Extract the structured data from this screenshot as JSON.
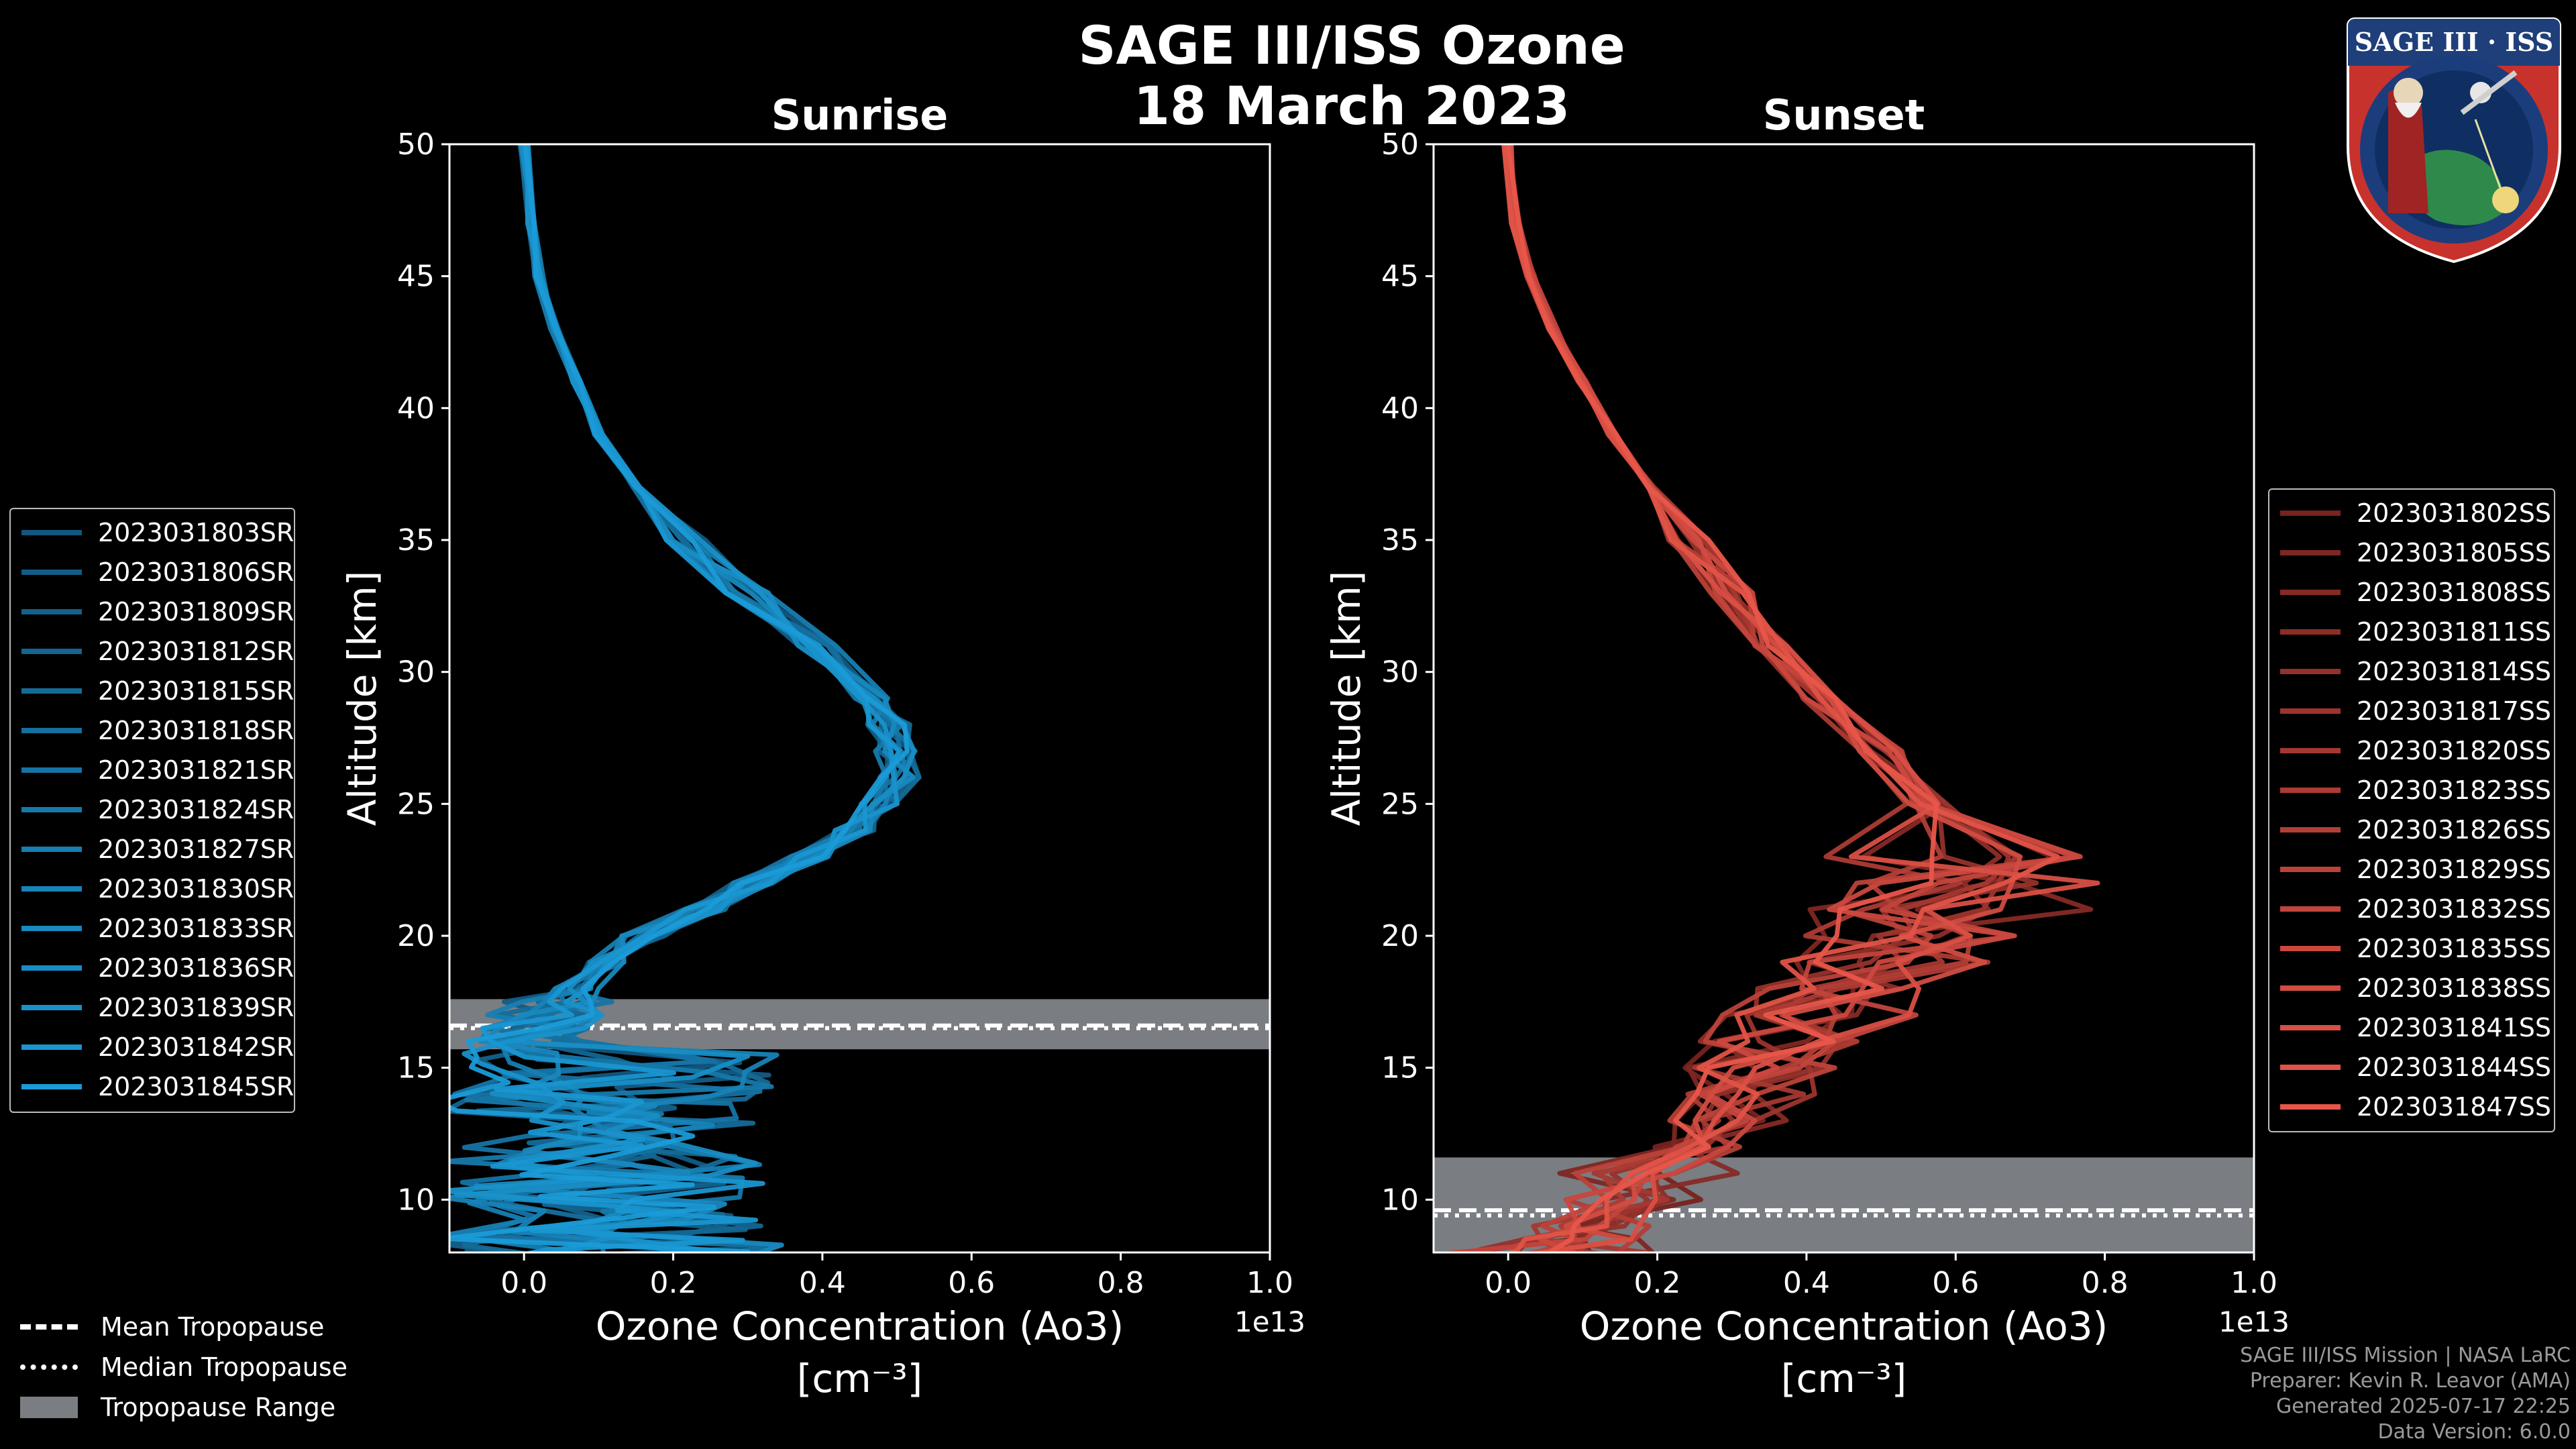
{
  "title": "SAGE III/ISS Ozone",
  "date": "18 March 2023",
  "logo_text": "SAGE III · ISS",
  "colors": {
    "sunrise": "#1a9bd7",
    "sunset": "#e8564a",
    "trop_band": "#7a7d82"
  },
  "chart_data": [
    {
      "type": "line",
      "name": "sunrise",
      "title": "Sunrise",
      "xlabel": "Ozone Concentration (Ao3)",
      "xlabel_units": "[cm⁻³]",
      "x_multiplier": "1e13",
      "ylabel": "Altitude [km]",
      "xlim": [
        -0.1,
        1.0
      ],
      "ylim": [
        8,
        50
      ],
      "xticks": [
        "0.0",
        "0.2",
        "0.4",
        "0.6",
        "0.8",
        "1.0"
      ],
      "yticks": [
        "10",
        "15",
        "20",
        "25",
        "30",
        "35",
        "40",
        "45",
        "50"
      ],
      "tropopause": {
        "mean": 16.6,
        "median": 16.5,
        "range": [
          15.7,
          17.6
        ]
      },
      "profile": {
        "alt": [
          50,
          47,
          45,
          43,
          41,
          39,
          37,
          35,
          33,
          31,
          29,
          28,
          27,
          26,
          25,
          24,
          23,
          22,
          21,
          20,
          19,
          18,
          17.5,
          17,
          16.5,
          16
        ],
        "ozone": [
          0.0,
          0.01,
          0.02,
          0.04,
          0.07,
          0.1,
          0.15,
          0.22,
          0.3,
          0.39,
          0.46,
          0.49,
          0.5,
          0.5,
          0.48,
          0.44,
          0.38,
          0.31,
          0.24,
          0.16,
          0.11,
          0.07,
          0.05,
          0.03,
          0.02,
          0.0
        ]
      },
      "series": [
        {
          "name": "2023031803SR"
        },
        {
          "name": "2023031806SR"
        },
        {
          "name": "2023031809SR"
        },
        {
          "name": "2023031812SR"
        },
        {
          "name": "2023031815SR"
        },
        {
          "name": "2023031818SR"
        },
        {
          "name": "2023031821SR"
        },
        {
          "name": "2023031824SR"
        },
        {
          "name": "2023031827SR"
        },
        {
          "name": "2023031830SR"
        },
        {
          "name": "2023031833SR"
        },
        {
          "name": "2023031836SR"
        },
        {
          "name": "2023031839SR"
        },
        {
          "name": "2023031842SR"
        },
        {
          "name": "2023031845SR"
        }
      ]
    },
    {
      "type": "line",
      "name": "sunset",
      "title": "Sunset",
      "xlabel": "Ozone Concentration (Ao3)",
      "xlabel_units": "[cm⁻³]",
      "x_multiplier": "1e13",
      "ylabel": "Altitude [km]",
      "xlim": [
        -0.1,
        1.0
      ],
      "ylim": [
        8,
        50
      ],
      "xticks": [
        "0.0",
        "0.2",
        "0.4",
        "0.6",
        "0.8",
        "1.0"
      ],
      "yticks": [
        "10",
        "15",
        "20",
        "25",
        "30",
        "35",
        "40",
        "45",
        "50"
      ],
      "tropopause": {
        "mean": 9.6,
        "median": 9.4,
        "range": [
          8,
          11.6
        ]
      },
      "profile": {
        "alt": [
          50,
          47,
          45,
          43,
          41,
          39,
          37,
          35,
          33,
          31,
          29,
          27,
          25,
          23,
          22,
          21,
          20,
          19,
          18,
          17,
          16,
          15,
          14,
          13,
          12,
          11,
          10,
          9,
          8.5
        ],
        "ozone": [
          0.0,
          0.01,
          0.03,
          0.06,
          0.1,
          0.14,
          0.19,
          0.24,
          0.3,
          0.36,
          0.42,
          0.5,
          0.56,
          0.6,
          0.62,
          0.6,
          0.55,
          0.5,
          0.44,
          0.4,
          0.36,
          0.33,
          0.3,
          0.27,
          0.24,
          0.2,
          0.16,
          0.12,
          0.1
        ]
      },
      "series": [
        {
          "name": "2023031802SS"
        },
        {
          "name": "2023031805SS"
        },
        {
          "name": "2023031808SS"
        },
        {
          "name": "2023031811SS"
        },
        {
          "name": "2023031814SS"
        },
        {
          "name": "2023031817SS"
        },
        {
          "name": "2023031820SS"
        },
        {
          "name": "2023031823SS"
        },
        {
          "name": "2023031826SS"
        },
        {
          "name": "2023031829SS"
        },
        {
          "name": "2023031832SS"
        },
        {
          "name": "2023031835SS"
        },
        {
          "name": "2023031838SS"
        },
        {
          "name": "2023031841SS"
        },
        {
          "name": "2023031844SS"
        },
        {
          "name": "2023031847SS"
        }
      ]
    }
  ],
  "trop_legend": [
    {
      "label": "Mean Tropopause",
      "style": "dashed"
    },
    {
      "label": "Median Tropopause",
      "style": "dotted"
    },
    {
      "label": "Tropopause Range",
      "style": "band"
    }
  ],
  "credits": [
    "SAGE III/ISS Mission | NASA LaRC",
    "Preparer: Kevin R. Leavor (AMA)",
    "Generated 2025-07-17 22:25",
    "Data Version: 6.0.0"
  ]
}
